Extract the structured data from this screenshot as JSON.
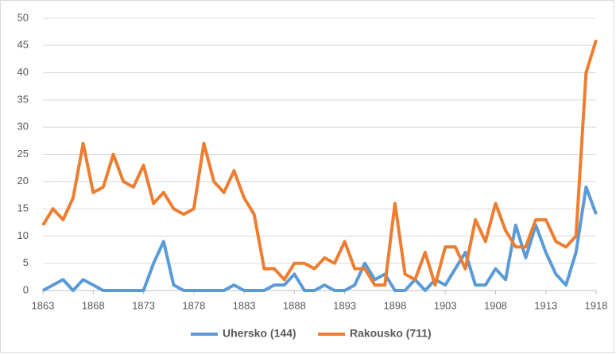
{
  "chart_data": {
    "type": "line",
    "x": [
      1863,
      1864,
      1865,
      1866,
      1867,
      1868,
      1869,
      1870,
      1871,
      1872,
      1873,
      1874,
      1875,
      1876,
      1877,
      1878,
      1879,
      1880,
      1881,
      1882,
      1883,
      1884,
      1885,
      1886,
      1887,
      1888,
      1889,
      1890,
      1891,
      1892,
      1893,
      1894,
      1895,
      1896,
      1897,
      1898,
      1899,
      1900,
      1901,
      1902,
      1903,
      1904,
      1905,
      1906,
      1907,
      1908,
      1909,
      1910,
      1911,
      1912,
      1913,
      1914,
      1915,
      1916,
      1917,
      1918
    ],
    "series": [
      {
        "name": "Uhersko (144)",
        "color": "#5b9bd5",
        "values": [
          0,
          1,
          2,
          0,
          2,
          1,
          0,
          0,
          0,
          0,
          0,
          5,
          9,
          1,
          0,
          0,
          0,
          0,
          0,
          1,
          0,
          0,
          0,
          1,
          1,
          3,
          0,
          0,
          1,
          0,
          0,
          1,
          5,
          2,
          3,
          0,
          0,
          2,
          0,
          2,
          1,
          4,
          7,
          1,
          1,
          4,
          2,
          12,
          6,
          12,
          7,
          3,
          1,
          7,
          19,
          14
        ]
      },
      {
        "name": "Rakousko (711)",
        "color": "#ed7d31",
        "values": [
          12,
          15,
          13,
          17,
          27,
          18,
          19,
          25,
          20,
          19,
          23,
          16,
          18,
          15,
          14,
          15,
          27,
          20,
          18,
          22,
          17,
          14,
          4,
          4,
          2,
          5,
          5,
          4,
          6,
          5,
          9,
          4,
          4,
          1,
          1,
          16,
          3,
          2,
          7,
          1,
          8,
          8,
          4,
          13,
          9,
          16,
          11,
          8,
          8,
          13,
          13,
          9,
          8,
          10,
          40,
          46
        ]
      }
    ],
    "xlim": [
      1863,
      1918
    ],
    "xticks": [
      1863,
      1868,
      1873,
      1878,
      1883,
      1888,
      1893,
      1898,
      1903,
      1908,
      1913,
      1918
    ],
    "ylim": [
      0,
      50
    ],
    "yticks": [
      0,
      5,
      10,
      15,
      20,
      25,
      30,
      35,
      40,
      45,
      50
    ],
    "grid": true,
    "legend": "bottom"
  }
}
